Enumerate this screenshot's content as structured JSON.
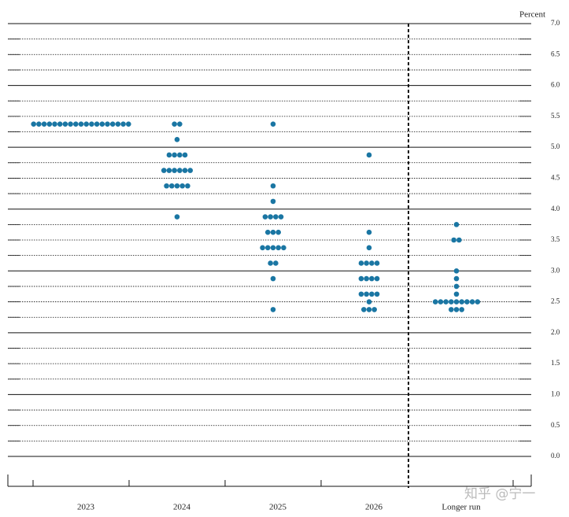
{
  "chart_data": {
    "type": "dot",
    "y_label": "Percent",
    "categories": [
      "2023",
      "2024",
      "2025",
      "2026",
      "Longer run"
    ],
    "values": [
      [
        5.375,
        5.375,
        5.375,
        5.375,
        5.375,
        5.375,
        5.375,
        5.375,
        5.375,
        5.375,
        5.375,
        5.375,
        5.375,
        5.375,
        5.375,
        5.375,
        5.375,
        5.375,
        5.375
      ],
      [
        5.375,
        5.375,
        5.125,
        4.875,
        4.875,
        4.875,
        4.875,
        4.625,
        4.625,
        4.625,
        4.625,
        4.625,
        4.625,
        4.375,
        4.375,
        4.375,
        4.375,
        4.375,
        3.875
      ],
      [
        5.375,
        4.375,
        4.125,
        3.875,
        3.875,
        3.875,
        3.875,
        3.625,
        3.625,
        3.625,
        3.375,
        3.375,
        3.375,
        3.375,
        3.375,
        3.125,
        3.125,
        2.875,
        2.375
      ],
      [
        4.875,
        3.625,
        3.375,
        3.125,
        3.125,
        3.125,
        3.125,
        2.875,
        2.875,
        2.875,
        2.875,
        2.625,
        2.625,
        2.625,
        2.625,
        2.5,
        2.375,
        2.375,
        2.375
      ],
      [
        3.75,
        3.5,
        3.5,
        3.0,
        2.875,
        2.75,
        2.625,
        2.5,
        2.5,
        2.5,
        2.5,
        2.5,
        2.5,
        2.5,
        2.5,
        2.5,
        2.375,
        2.375,
        2.375
      ]
    ],
    "color": "#1a76a3",
    "ylim": [
      0,
      7
    ],
    "yticks": [
      {
        "value": 0,
        "label": "0.0"
      },
      {
        "value": 0.5,
        "label": "0.5"
      },
      {
        "value": 1,
        "label": "1.0"
      },
      {
        "value": 1.5,
        "label": "1.5"
      },
      {
        "value": 2,
        "label": "2.0"
      },
      {
        "value": 2.5,
        "label": "2.5"
      },
      {
        "value": 3,
        "label": "3.0"
      },
      {
        "value": 3.5,
        "label": "3.5"
      },
      {
        "value": 4,
        "label": "4.0"
      },
      {
        "value": 4.5,
        "label": "4.5"
      },
      {
        "value": 5,
        "label": "5.0"
      },
      {
        "value": 5.5,
        "label": "5.5"
      },
      {
        "value": 6,
        "label": "6.0"
      },
      {
        "value": 6.5,
        "label": "6.5"
      },
      {
        "value": 7,
        "label": "7.0"
      }
    ],
    "grid": true,
    "watermark": "知乎 @宁一"
  }
}
